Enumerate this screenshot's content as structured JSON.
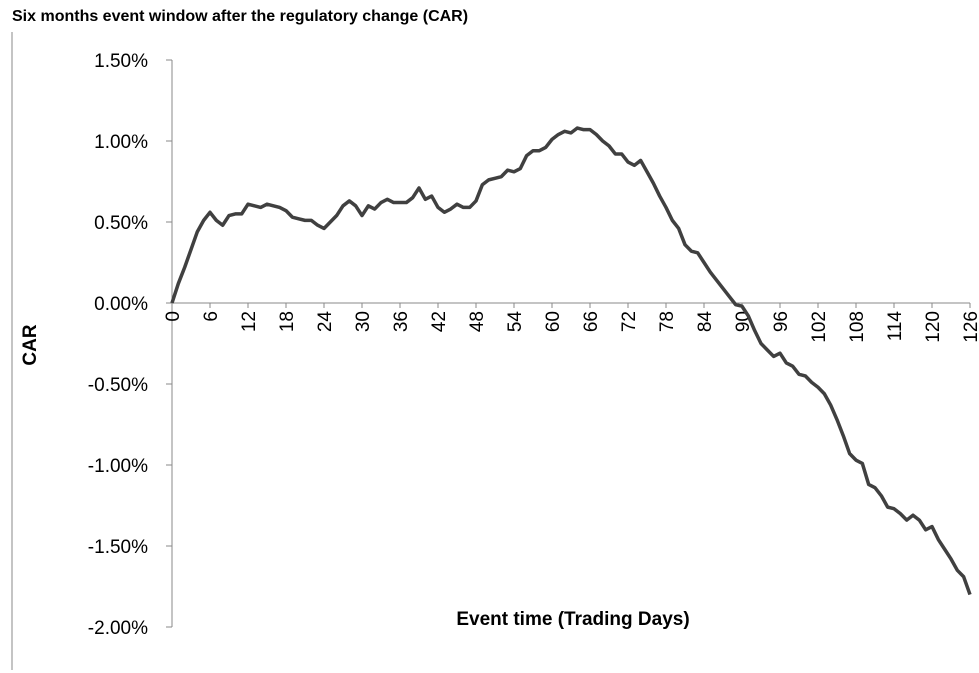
{
  "chart_data": {
    "type": "line",
    "title": "Six months event window after the regulatory change (CAR)",
    "x_label": "Event time (Trading Days)",
    "y_label": "CAR",
    "x": [
      0,
      1,
      2,
      3,
      4,
      5,
      6,
      7,
      8,
      9,
      10,
      11,
      12,
      13,
      14,
      15,
      16,
      17,
      18,
      19,
      20,
      21,
      22,
      23,
      24,
      25,
      26,
      27,
      28,
      29,
      30,
      31,
      32,
      33,
      34,
      35,
      36,
      37,
      38,
      39,
      40,
      41,
      42,
      43,
      44,
      45,
      46,
      47,
      48,
      49,
      50,
      51,
      52,
      53,
      54,
      55,
      56,
      57,
      58,
      59,
      60,
      61,
      62,
      63,
      64,
      65,
      66,
      67,
      68,
      69,
      70,
      71,
      72,
      73,
      74,
      75,
      76,
      77,
      78,
      79,
      80,
      81,
      82,
      83,
      84,
      85,
      86,
      87,
      88,
      89,
      90,
      91,
      92,
      93,
      94,
      95,
      96,
      97,
      98,
      99,
      100,
      101,
      102,
      103,
      104,
      105,
      106,
      107,
      108,
      109,
      110,
      111,
      112,
      113,
      114,
      115,
      116,
      117,
      118,
      119,
      120,
      121,
      122,
      123,
      124,
      125,
      126
    ],
    "series": [
      {
        "name": "CAR",
        "color": "#404040",
        "values": [
          0.0,
          0.12,
          0.22,
          0.33,
          0.44,
          0.51,
          0.56,
          0.51,
          0.48,
          0.54,
          0.55,
          0.55,
          0.61,
          0.6,
          0.59,
          0.61,
          0.6,
          0.59,
          0.57,
          0.53,
          0.52,
          0.51,
          0.51,
          0.48,
          0.46,
          0.5,
          0.54,
          0.6,
          0.63,
          0.6,
          0.54,
          0.6,
          0.58,
          0.62,
          0.64,
          0.62,
          0.62,
          0.62,
          0.65,
          0.71,
          0.64,
          0.66,
          0.59,
          0.56,
          0.58,
          0.61,
          0.59,
          0.59,
          0.63,
          0.73,
          0.76,
          0.77,
          0.78,
          0.82,
          0.81,
          0.83,
          0.91,
          0.94,
          0.94,
          0.96,
          1.01,
          1.04,
          1.06,
          1.05,
          1.08,
          1.07,
          1.07,
          1.04,
          1.0,
          0.97,
          0.92,
          0.92,
          0.87,
          0.85,
          0.88,
          0.81,
          0.74,
          0.66,
          0.59,
          0.51,
          0.46,
          0.36,
          0.32,
          0.31,
          0.25,
          0.19,
          0.14,
          0.09,
          0.04,
          -0.01,
          -0.02,
          -0.08,
          -0.17,
          -0.25,
          -0.29,
          -0.33,
          -0.31,
          -0.37,
          -0.39,
          -0.44,
          -0.45,
          -0.49,
          -0.52,
          -0.56,
          -0.63,
          -0.72,
          -0.82,
          -0.93,
          -0.97,
          -0.99,
          -1.12,
          -1.14,
          -1.19,
          -1.26,
          -1.27,
          -1.3,
          -1.34,
          -1.31,
          -1.34,
          -1.4,
          -1.38,
          -1.46,
          -1.52,
          -1.58,
          -1.65,
          -1.69,
          -1.8
        ]
      }
    ],
    "xlim": [
      0,
      126
    ],
    "xticks": [
      0,
      6,
      12,
      18,
      24,
      30,
      36,
      42,
      48,
      54,
      60,
      66,
      72,
      78,
      84,
      90,
      96,
      102,
      108,
      114,
      120,
      126
    ],
    "ylim": [
      -2,
      1.5
    ],
    "yticks": [
      {
        "value": -2,
        "label": "-2.00%"
      },
      {
        "value": -1.5,
        "label": "-1.50%"
      },
      {
        "value": -1,
        "label": "-1.00%"
      },
      {
        "value": -0.5,
        "label": "-0.50%"
      },
      {
        "value": 0,
        "label": "0.00%"
      },
      {
        "value": 0.5,
        "label": "0.50%"
      },
      {
        "value": 1,
        "label": "1.00%"
      },
      {
        "value": 1.5,
        "label": "1.50%"
      }
    ],
    "grid": false
  }
}
